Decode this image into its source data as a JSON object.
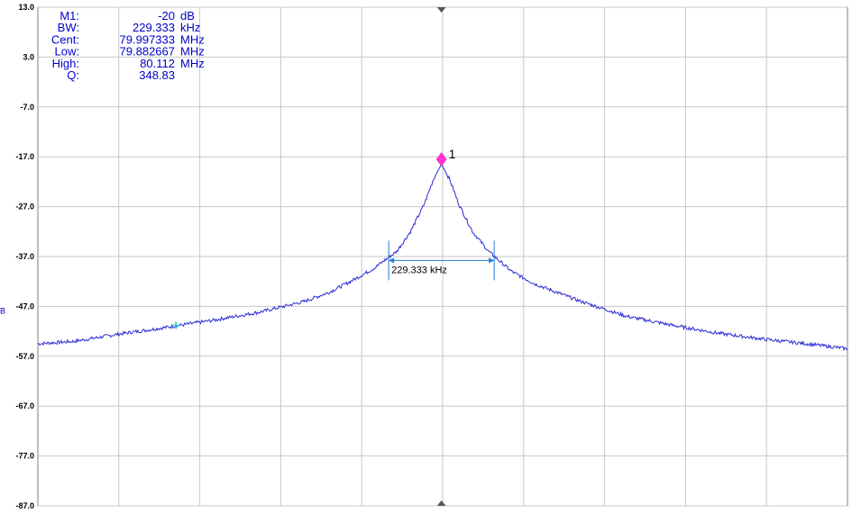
{
  "colors": {
    "background": "#ffffff",
    "grid": "#c8c8c8",
    "trace": "#2b2bd6",
    "readout_text": "#0000cc",
    "marker": "#ff33cc",
    "bandwidth": "#1f7fd8",
    "center_arrow": "#555555",
    "aux_marker": "#22c7d8"
  },
  "readout": [
    {
      "label": "M1:",
      "value": "-20",
      "unit": "dB"
    },
    {
      "label": "BW:",
      "value": "229.333",
      "unit": "kHz"
    },
    {
      "label": "Cent:",
      "value": "79.997333",
      "unit": "MHz"
    },
    {
      "label": "Low:",
      "value": "79.882667",
      "unit": "MHz"
    },
    {
      "label": "High:",
      "value": "80.112",
      "unit": "MHz"
    },
    {
      "label": "Q:",
      "value": "348.83",
      "unit": ""
    }
  ],
  "marker": {
    "label": "1",
    "level_db": -17.5,
    "icon": "diamond-marker-icon"
  },
  "bandwidth_annotation": {
    "text": "229.333 kHz",
    "level_db": -37.8,
    "low_mhz": 79.882667,
    "high_mhz": 80.112
  },
  "ylabel_stub": "B",
  "chart_data": {
    "type": "line",
    "title": "",
    "xlabel": "",
    "ylabel": "",
    "grid": true,
    "legend": "none",
    "x_unit": "MHz",
    "xlim": [
      79.12,
      80.88
    ],
    "ylim": [
      -87.0,
      13.0
    ],
    "yticks": [
      "13.0",
      "3.0",
      "-7.0",
      "-17.0",
      "-27.0",
      "-37.0",
      "-47.0",
      "-57.0",
      "-67.0",
      "-77.0",
      "-87.0"
    ],
    "x_gridlines": 10,
    "series": [
      {
        "x": [
          79.12,
          79.2,
          79.3,
          79.4,
          79.5,
          79.6,
          79.7,
          79.75,
          79.8,
          79.85,
          79.9,
          79.93,
          79.96,
          79.98,
          79.997333,
          80.015,
          80.035,
          80.065,
          80.1,
          80.15,
          80.2,
          80.3,
          80.4,
          80.5,
          80.6,
          80.7,
          80.8,
          80.88
        ],
        "y": [
          -54.5,
          -54.0,
          -52.5,
          -51.2,
          -49.8,
          -48.2,
          -46.0,
          -44.3,
          -42.0,
          -39.4,
          -36.0,
          -32.0,
          -26.5,
          -21.5,
          -18.5,
          -21.5,
          -26.5,
          -32.0,
          -36.0,
          -40.0,
          -42.5,
          -46.0,
          -49.0,
          -50.8,
          -52.4,
          -53.6,
          -54.6,
          -55.5
        ]
      }
    ],
    "aux_marker": {
      "x": 79.42,
      "y": -50.8
    }
  }
}
